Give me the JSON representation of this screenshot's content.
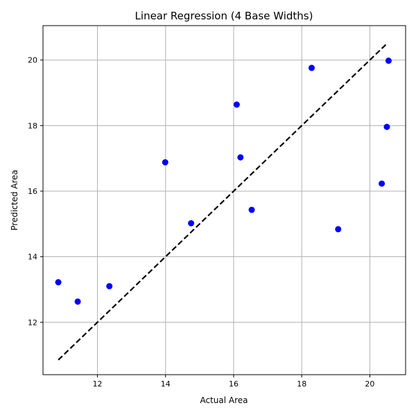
{
  "chart_data": {
    "type": "scatter",
    "title": "Linear Regression (4 Base Widths)",
    "xlabel": "Actual Area",
    "ylabel": "Predicted Area",
    "xlim": [
      10.4,
      21.05
    ],
    "ylim": [
      10.4,
      21.05
    ],
    "x_ticks": [
      12,
      14,
      16,
      18,
      20
    ],
    "y_ticks": [
      12,
      14,
      16,
      18,
      20
    ],
    "grid": true,
    "points": [
      {
        "x": 10.85,
        "y": 13.22
      },
      {
        "x": 11.42,
        "y": 12.63
      },
      {
        "x": 12.35,
        "y": 13.1
      },
      {
        "x": 13.99,
        "y": 16.88
      },
      {
        "x": 14.75,
        "y": 15.02
      },
      {
        "x": 16.09,
        "y": 18.64
      },
      {
        "x": 16.2,
        "y": 17.03
      },
      {
        "x": 16.53,
        "y": 15.43
      },
      {
        "x": 18.29,
        "y": 19.76
      },
      {
        "x": 19.07,
        "y": 14.84
      },
      {
        "x": 20.35,
        "y": 16.23
      },
      {
        "x": 20.5,
        "y": 17.96
      },
      {
        "x": 20.55,
        "y": 19.98
      }
    ],
    "fit_line": {
      "x": [
        10.85,
        20.5
      ],
      "y": [
        10.85,
        20.5
      ]
    },
    "colors": {
      "points": "#0000ff",
      "line": "#000000",
      "grid": "#b0b0b0"
    }
  }
}
